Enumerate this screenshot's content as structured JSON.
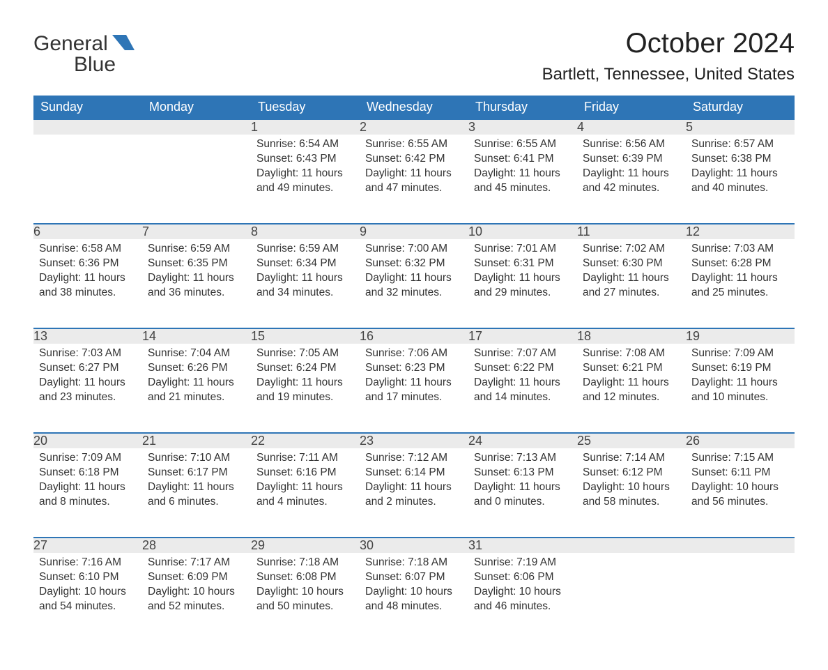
{
  "logo": {
    "word1": "General",
    "word2": "Blue"
  },
  "title": "October 2024",
  "location": "Bartlett, Tennessee, United States",
  "colors": {
    "header_bg": "#2e75b6",
    "header_text": "#ffffff",
    "daynum_bg": "#ebebeb",
    "row_border": "#2e75b6",
    "body_text": "#333333",
    "logo_accent": "#2e75b6"
  },
  "fonts": {
    "title_size_pt": 30,
    "location_size_pt": 18,
    "header_size_pt": 14,
    "body_size_pt": 12
  },
  "weekdays": [
    "Sunday",
    "Monday",
    "Tuesday",
    "Wednesday",
    "Thursday",
    "Friday",
    "Saturday"
  ],
  "weeks": [
    [
      null,
      null,
      {
        "n": "1",
        "sunrise": "6:54 AM",
        "sunset": "6:43 PM",
        "day_h": "11",
        "day_m": "49"
      },
      {
        "n": "2",
        "sunrise": "6:55 AM",
        "sunset": "6:42 PM",
        "day_h": "11",
        "day_m": "47"
      },
      {
        "n": "3",
        "sunrise": "6:55 AM",
        "sunset": "6:41 PM",
        "day_h": "11",
        "day_m": "45"
      },
      {
        "n": "4",
        "sunrise": "6:56 AM",
        "sunset": "6:39 PM",
        "day_h": "11",
        "day_m": "42"
      },
      {
        "n": "5",
        "sunrise": "6:57 AM",
        "sunset": "6:38 PM",
        "day_h": "11",
        "day_m": "40"
      }
    ],
    [
      {
        "n": "6",
        "sunrise": "6:58 AM",
        "sunset": "6:36 PM",
        "day_h": "11",
        "day_m": "38"
      },
      {
        "n": "7",
        "sunrise": "6:59 AM",
        "sunset": "6:35 PM",
        "day_h": "11",
        "day_m": "36"
      },
      {
        "n": "8",
        "sunrise": "6:59 AM",
        "sunset": "6:34 PM",
        "day_h": "11",
        "day_m": "34"
      },
      {
        "n": "9",
        "sunrise": "7:00 AM",
        "sunset": "6:32 PM",
        "day_h": "11",
        "day_m": "32"
      },
      {
        "n": "10",
        "sunrise": "7:01 AM",
        "sunset": "6:31 PM",
        "day_h": "11",
        "day_m": "29"
      },
      {
        "n": "11",
        "sunrise": "7:02 AM",
        "sunset": "6:30 PM",
        "day_h": "11",
        "day_m": "27"
      },
      {
        "n": "12",
        "sunrise": "7:03 AM",
        "sunset": "6:28 PM",
        "day_h": "11",
        "day_m": "25"
      }
    ],
    [
      {
        "n": "13",
        "sunrise": "7:03 AM",
        "sunset": "6:27 PM",
        "day_h": "11",
        "day_m": "23"
      },
      {
        "n": "14",
        "sunrise": "7:04 AM",
        "sunset": "6:26 PM",
        "day_h": "11",
        "day_m": "21"
      },
      {
        "n": "15",
        "sunrise": "7:05 AM",
        "sunset": "6:24 PM",
        "day_h": "11",
        "day_m": "19"
      },
      {
        "n": "16",
        "sunrise": "7:06 AM",
        "sunset": "6:23 PM",
        "day_h": "11",
        "day_m": "17"
      },
      {
        "n": "17",
        "sunrise": "7:07 AM",
        "sunset": "6:22 PM",
        "day_h": "11",
        "day_m": "14"
      },
      {
        "n": "18",
        "sunrise": "7:08 AM",
        "sunset": "6:21 PM",
        "day_h": "11",
        "day_m": "12"
      },
      {
        "n": "19",
        "sunrise": "7:09 AM",
        "sunset": "6:19 PM",
        "day_h": "11",
        "day_m": "10"
      }
    ],
    [
      {
        "n": "20",
        "sunrise": "7:09 AM",
        "sunset": "6:18 PM",
        "day_h": "11",
        "day_m": "8"
      },
      {
        "n": "21",
        "sunrise": "7:10 AM",
        "sunset": "6:17 PM",
        "day_h": "11",
        "day_m": "6"
      },
      {
        "n": "22",
        "sunrise": "7:11 AM",
        "sunset": "6:16 PM",
        "day_h": "11",
        "day_m": "4"
      },
      {
        "n": "23",
        "sunrise": "7:12 AM",
        "sunset": "6:14 PM",
        "day_h": "11",
        "day_m": "2"
      },
      {
        "n": "24",
        "sunrise": "7:13 AM",
        "sunset": "6:13 PM",
        "day_h": "11",
        "day_m": "0"
      },
      {
        "n": "25",
        "sunrise": "7:14 AM",
        "sunset": "6:12 PM",
        "day_h": "10",
        "day_m": "58"
      },
      {
        "n": "26",
        "sunrise": "7:15 AM",
        "sunset": "6:11 PM",
        "day_h": "10",
        "day_m": "56"
      }
    ],
    [
      {
        "n": "27",
        "sunrise": "7:16 AM",
        "sunset": "6:10 PM",
        "day_h": "10",
        "day_m": "54"
      },
      {
        "n": "28",
        "sunrise": "7:17 AM",
        "sunset": "6:09 PM",
        "day_h": "10",
        "day_m": "52"
      },
      {
        "n": "29",
        "sunrise": "7:18 AM",
        "sunset": "6:08 PM",
        "day_h": "10",
        "day_m": "50"
      },
      {
        "n": "30",
        "sunrise": "7:18 AM",
        "sunset": "6:07 PM",
        "day_h": "10",
        "day_m": "48"
      },
      {
        "n": "31",
        "sunrise": "7:19 AM",
        "sunset": "6:06 PM",
        "day_h": "10",
        "day_m": "46"
      },
      null,
      null
    ]
  ],
  "labels": {
    "sunrise": "Sunrise:",
    "sunset": "Sunset:",
    "daylight1": "Daylight:",
    "hours": "hours",
    "and": "and",
    "minutes": "minutes."
  }
}
